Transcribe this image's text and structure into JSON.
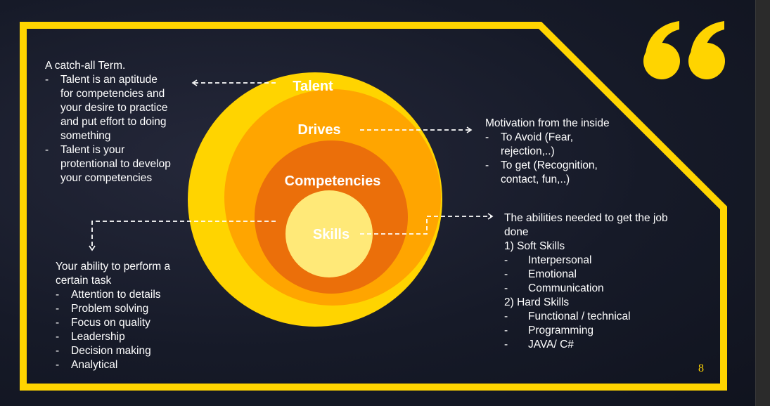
{
  "rings": {
    "talent": "Talent",
    "drives": "Drives",
    "competencies": "Competencies",
    "skills": "Skills"
  },
  "talent_block": {
    "heading": "A catch-all Term.",
    "items": [
      [
        "Talent is an aptitude",
        "for competencies and",
        "your desire to practice",
        "and put effort to doing",
        "something"
      ],
      [
        "Talent is your",
        "protentional to develop",
        "your competencies"
      ]
    ]
  },
  "drives_block": {
    "heading": "Motivation from the inside",
    "items": [
      [
        "To Avoid (Fear,",
        "rejection,..)"
      ],
      [
        "To get (Recognition,",
        "contact, fun,..)"
      ]
    ]
  },
  "competencies_block": {
    "heading_lines": [
      "Your ability to perform a",
      "certain task"
    ],
    "items": [
      "Attention to details",
      "Problem solving",
      "Focus on quality",
      "Leadership",
      "Decision making",
      "Analytical"
    ]
  },
  "skills_block": {
    "heading_lines": [
      "The abilities needed to get the job",
      "done"
    ],
    "soft_heading": "1) Soft Skills",
    "soft_items": [
      "Interpersonal",
      "Emotional",
      "Communication"
    ],
    "hard_heading": "2) Hard Skills",
    "hard_items": [
      "Functional / technical",
      "Programming",
      "JAVA/ C#"
    ]
  },
  "quote_mark": "“",
  "page_number": "8",
  "colors": {
    "frame": "#FFD400",
    "ring_outer": "#FFD400",
    "ring_drives": "#FFA500",
    "ring_competencies": "#EB6F0A",
    "ring_skills": "#FFE978"
  }
}
